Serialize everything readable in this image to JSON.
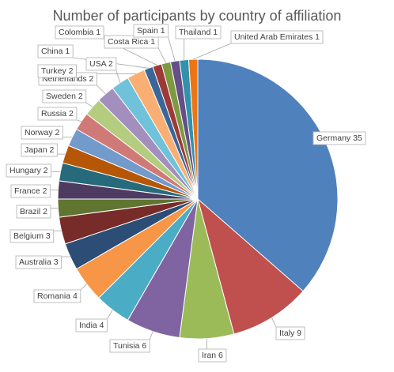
{
  "chart_data": {
    "type": "pie",
    "title": "Number of participants by country of affiliation",
    "start_angle_deg": 0,
    "direction": "clockwise",
    "slices": [
      {
        "label": "Germany",
        "value": 35,
        "color": "#4F81BD"
      },
      {
        "label": "Italy",
        "value": 9,
        "color": "#C0504D"
      },
      {
        "label": "Iran",
        "value": 6,
        "color": "#9BBB59"
      },
      {
        "label": "Tunisia",
        "value": 6,
        "color": "#8064A2"
      },
      {
        "label": "India",
        "value": 4,
        "color": "#4BACC6"
      },
      {
        "label": "Romania",
        "value": 4,
        "color": "#F79646"
      },
      {
        "label": "Australia",
        "value": 3,
        "color": "#2C4D75"
      },
      {
        "label": "Belgium",
        "value": 3,
        "color": "#772C2A"
      },
      {
        "label": "Brazil",
        "value": 2,
        "color": "#5F7530"
      },
      {
        "label": "France",
        "value": 2,
        "color": "#4D3B62"
      },
      {
        "label": "Hungary",
        "value": 2,
        "color": "#276A7C"
      },
      {
        "label": "Japan",
        "value": 2,
        "color": "#B65708"
      },
      {
        "label": "Norway",
        "value": 2,
        "color": "#729ACA"
      },
      {
        "label": "Russia",
        "value": 2,
        "color": "#D07A78"
      },
      {
        "label": "Sweden",
        "value": 2,
        "color": "#B3CC7E"
      },
      {
        "label": "Netherlands",
        "value": 2,
        "color": "#A28FBD"
      },
      {
        "label": "USA",
        "value": 2,
        "color": "#6FC2D9"
      },
      {
        "label": "Turkey",
        "value": 2,
        "color": "#F9AF73"
      },
      {
        "label": "China",
        "value": 1,
        "color": "#3A6798"
      },
      {
        "label": "Colombia",
        "value": 1,
        "color": "#9D3A37"
      },
      {
        "label": "Costa Rica",
        "value": 1,
        "color": "#7E9A41"
      },
      {
        "label": "Spain",
        "value": 1,
        "color": "#654F86"
      },
      {
        "label": "Thailand",
        "value": 1,
        "color": "#3491AB"
      },
      {
        "label": "United Arab Emirates",
        "value": 1,
        "color": "#EC7514"
      }
    ],
    "data_labels": "category and value, outside with leader lines",
    "legend": "none"
  }
}
